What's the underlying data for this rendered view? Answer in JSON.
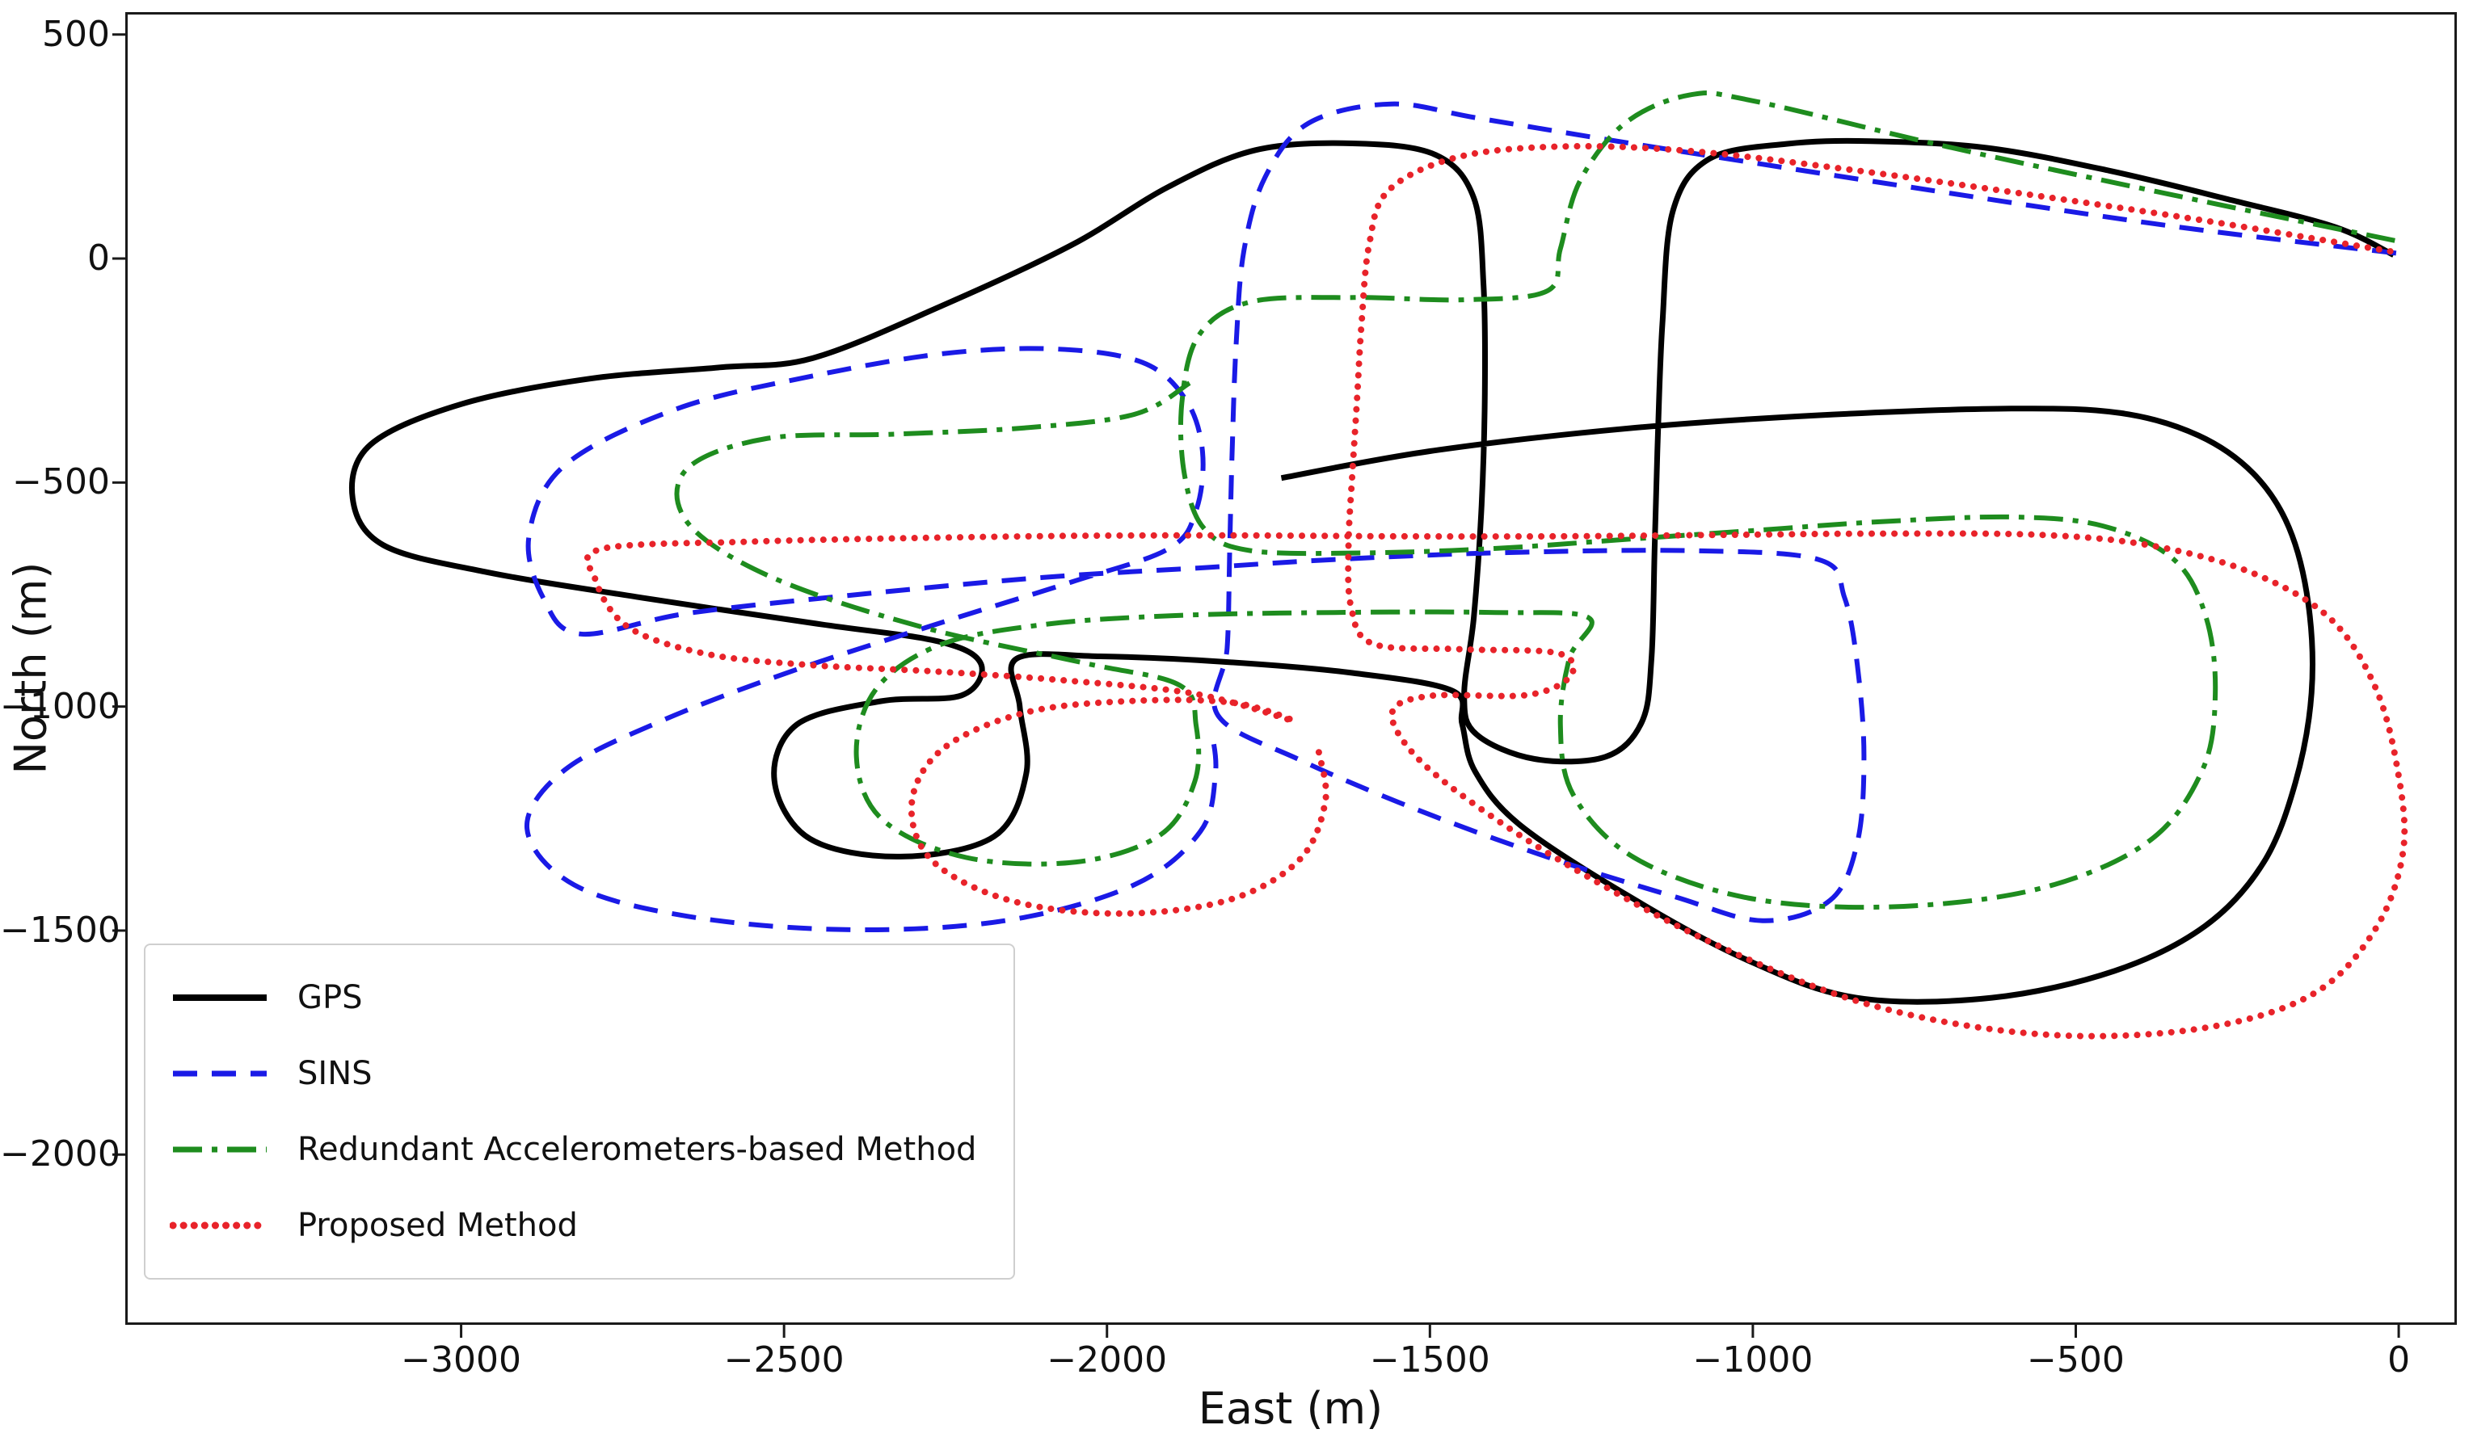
{
  "figure": {
    "background": "#ffffff",
    "frame_color": "#1a1a1a"
  },
  "chart_data": {
    "type": "line",
    "title": "",
    "xlabel": "East (m)",
    "ylabel": "North (m)",
    "xlim": [
      -3520,
      90
    ],
    "ylim": [
      -2380,
      550
    ],
    "x_ticks": [
      -3000,
      -2500,
      -2000,
      -1500,
      -1000,
      -500,
      0
    ],
    "y_ticks": [
      500,
      0,
      -500,
      -1000,
      -1500,
      -2000
    ],
    "grid": false,
    "legend": {
      "position": "lower-left",
      "entries": [
        "GPS",
        "SINS",
        "Redundant Accelerometers-based Method",
        "Proposed Method"
      ]
    },
    "series": [
      {
        "name": "GPS",
        "color": "#000000",
        "line_style": "solid",
        "line_width": 7,
        "points": [
          [
            -1730,
            -490
          ],
          [
            -1500,
            -430
          ],
          [
            -1200,
            -380
          ],
          [
            -900,
            -350
          ],
          [
            -600,
            -335
          ],
          [
            -430,
            -345
          ],
          [
            -310,
            -395
          ],
          [
            -225,
            -480
          ],
          [
            -170,
            -600
          ],
          [
            -140,
            -770
          ],
          [
            -135,
            -970
          ],
          [
            -160,
            -1170
          ],
          [
            -210,
            -1350
          ],
          [
            -300,
            -1490
          ],
          [
            -440,
            -1590
          ],
          [
            -630,
            -1650
          ],
          [
            -840,
            -1650
          ],
          [
            -1010,
            -1565
          ],
          [
            -1190,
            -1425
          ],
          [
            -1360,
            -1265
          ],
          [
            -1430,
            -1145
          ],
          [
            -1450,
            -1040
          ],
          [
            -1465,
            -965
          ],
          [
            -1620,
            -925
          ],
          [
            -1820,
            -900
          ],
          [
            -2010,
            -888
          ],
          [
            -2140,
            -893
          ],
          [
            -2135,
            -1000
          ],
          [
            -2125,
            -1150
          ],
          [
            -2175,
            -1290
          ],
          [
            -2320,
            -1335
          ],
          [
            -2460,
            -1295
          ],
          [
            -2515,
            -1165
          ],
          [
            -2480,
            -1040
          ],
          [
            -2350,
            -988
          ],
          [
            -2225,
            -975
          ],
          [
            -2195,
            -905
          ],
          [
            -2260,
            -855
          ],
          [
            -2450,
            -815
          ],
          [
            -2720,
            -757
          ],
          [
            -2960,
            -700
          ],
          [
            -3120,
            -640
          ],
          [
            -3168,
            -535
          ],
          [
            -3140,
            -415
          ],
          [
            -3000,
            -325
          ],
          [
            -2800,
            -268
          ],
          [
            -2600,
            -243
          ],
          [
            -2455,
            -222
          ],
          [
            -2255,
            -105
          ],
          [
            -2055,
            30
          ],
          [
            -1905,
            160
          ],
          [
            -1770,
            242
          ],
          [
            -1620,
            257
          ],
          [
            -1492,
            232
          ],
          [
            -1432,
            135
          ],
          [
            -1417,
            -60
          ],
          [
            -1415,
            -300
          ],
          [
            -1420,
            -550
          ],
          [
            -1432,
            -800
          ],
          [
            -1447,
            -978
          ],
          [
            -1428,
            -1062
          ],
          [
            -1338,
            -1117
          ],
          [
            -1228,
            -1112
          ],
          [
            -1172,
            -1035
          ],
          [
            -1157,
            -895
          ],
          [
            -1152,
            -645
          ],
          [
            -1147,
            -395
          ],
          [
            -1140,
            -145
          ],
          [
            -1124,
            105
          ],
          [
            -1068,
            222
          ],
          [
            -948,
            256
          ],
          [
            -818,
            262
          ],
          [
            -638,
            247
          ],
          [
            -448,
            196
          ],
          [
            -258,
            130
          ],
          [
            -98,
            70
          ],
          [
            -8,
            8
          ]
        ]
      },
      {
        "name": "SINS",
        "color": "#1a1ae6",
        "line_style": "dashed",
        "line_width": 6,
        "points": [
          [
            -4,
            12
          ],
          [
            -350,
            72
          ],
          [
            -750,
            158
          ],
          [
            -1150,
            248
          ],
          [
            -1420,
            312
          ],
          [
            -1560,
            345
          ],
          [
            -1688,
            302
          ],
          [
            -1755,
            182
          ],
          [
            -1788,
            18
          ],
          [
            -1800,
            -190
          ],
          [
            -1806,
            -420
          ],
          [
            -1810,
            -650
          ],
          [
            -1814,
            -870
          ],
          [
            -1828,
            -1020
          ],
          [
            -1700,
            -1120
          ],
          [
            -1520,
            -1230
          ],
          [
            -1320,
            -1335
          ],
          [
            -1120,
            -1425
          ],
          [
            -985,
            -1478
          ],
          [
            -880,
            -1432
          ],
          [
            -838,
            -1302
          ],
          [
            -828,
            -1110
          ],
          [
            -838,
            -910
          ],
          [
            -858,
            -757
          ],
          [
            -898,
            -672
          ],
          [
            -1100,
            -652
          ],
          [
            -1400,
            -657
          ],
          [
            -1650,
            -672
          ],
          [
            -1850,
            -690
          ],
          [
            -2100,
            -712
          ],
          [
            -2400,
            -752
          ],
          [
            -2650,
            -792
          ],
          [
            -2815,
            -838
          ],
          [
            -2872,
            -760
          ],
          [
            -2895,
            -620
          ],
          [
            -2840,
            -462
          ],
          [
            -2665,
            -335
          ],
          [
            -2455,
            -262
          ],
          [
            -2252,
            -212
          ],
          [
            -2078,
            -202
          ],
          [
            -1945,
            -232
          ],
          [
            -1878,
            -315
          ],
          [
            -1852,
            -432
          ],
          [
            -1862,
            -562
          ],
          [
            -1905,
            -648
          ],
          [
            -2055,
            -722
          ],
          [
            -2255,
            -812
          ],
          [
            -2490,
            -922
          ],
          [
            -2690,
            -1032
          ],
          [
            -2840,
            -1142
          ],
          [
            -2898,
            -1272
          ],
          [
            -2825,
            -1398
          ],
          [
            -2650,
            -1468
          ],
          [
            -2405,
            -1498
          ],
          [
            -2158,
            -1478
          ],
          [
            -1958,
            -1398
          ],
          [
            -1855,
            -1278
          ],
          [
            -1832,
            -1148
          ],
          [
            -1838,
            -1055
          ]
        ]
      },
      {
        "name": "Redundant Accelerometers-based Method",
        "color": "#1e8c1e",
        "line_style": "dashdot",
        "line_width": 6,
        "points": [
          [
            -6,
            40
          ],
          [
            -350,
            142
          ],
          [
            -700,
            250
          ],
          [
            -1000,
            352
          ],
          [
            -1098,
            365
          ],
          [
            -1198,
            302
          ],
          [
            -1268,
            172
          ],
          [
            -1298,
            22
          ],
          [
            -1318,
            -72
          ],
          [
            -1448,
            -92
          ],
          [
            -1618,
            -87
          ],
          [
            -1778,
            -97
          ],
          [
            -1858,
            -172
          ],
          [
            -1884,
            -322
          ],
          [
            -1880,
            -482
          ],
          [
            -1850,
            -602
          ],
          [
            -1778,
            -652
          ],
          [
            -1598,
            -657
          ],
          [
            -1398,
            -647
          ],
          [
            -1198,
            -627
          ],
          [
            -998,
            -607
          ],
          [
            -798,
            -587
          ],
          [
            -598,
            -577
          ],
          [
            -458,
            -597
          ],
          [
            -348,
            -672
          ],
          [
            -298,
            -802
          ],
          [
            -284,
            -972
          ],
          [
            -304,
            -1142
          ],
          [
            -388,
            -1302
          ],
          [
            -558,
            -1407
          ],
          [
            -788,
            -1447
          ],
          [
            -1008,
            -1427
          ],
          [
            -1184,
            -1337
          ],
          [
            -1278,
            -1197
          ],
          [
            -1298,
            -1042
          ],
          [
            -1284,
            -892
          ],
          [
            -1254,
            -802
          ],
          [
            -1398,
            -790
          ],
          [
            -1648,
            -790
          ],
          [
            -1898,
            -797
          ],
          [
            -2098,
            -817
          ],
          [
            -2258,
            -862
          ],
          [
            -2358,
            -962
          ],
          [
            -2388,
            -1112
          ],
          [
            -2348,
            -1252
          ],
          [
            -2218,
            -1337
          ],
          [
            -2048,
            -1347
          ],
          [
            -1918,
            -1287
          ],
          [
            -1864,
            -1167
          ],
          [
            -1862,
            -1042
          ],
          [
            -1888,
            -952
          ],
          [
            -2038,
            -902
          ],
          [
            -2288,
            -822
          ],
          [
            -2518,
            -712
          ],
          [
            -2648,
            -592
          ],
          [
            -2652,
            -472
          ],
          [
            -2528,
            -402
          ],
          [
            -2328,
            -392
          ],
          [
            -2128,
            -378
          ],
          [
            -1958,
            -348
          ],
          [
            -1872,
            -278
          ]
        ]
      },
      {
        "name": "Proposed Method",
        "color": "#e8232a",
        "line_style": "dotted",
        "line_width": 8,
        "points": [
          [
            -1672,
            -1102
          ],
          [
            -1662,
            -1212
          ],
          [
            -1702,
            -1342
          ],
          [
            -1812,
            -1432
          ],
          [
            -1982,
            -1462
          ],
          [
            -2152,
            -1432
          ],
          [
            -2272,
            -1342
          ],
          [
            -2302,
            -1212
          ],
          [
            -2252,
            -1092
          ],
          [
            -2122,
            -1012
          ],
          [
            -1952,
            -987
          ],
          [
            -1802,
            -992
          ],
          [
            -1712,
            -1032
          ],
          [
            -1862,
            -972
          ],
          [
            -2062,
            -942
          ],
          [
            -2262,
            -922
          ],
          [
            -2462,
            -907
          ],
          [
            -2622,
            -882
          ],
          [
            -2742,
            -822
          ],
          [
            -2792,
            -717
          ],
          [
            -2782,
            -648
          ],
          [
            -2552,
            -632
          ],
          [
            -2302,
            -624
          ],
          [
            -2052,
            -619
          ],
          [
            -1802,
            -618
          ],
          [
            -1552,
            -620
          ],
          [
            -1302,
            -620
          ],
          [
            -1052,
            -617
          ],
          [
            -802,
            -614
          ],
          [
            -552,
            -617
          ],
          [
            -382,
            -641
          ],
          [
            -228,
            -701
          ],
          [
            -108,
            -801
          ],
          [
            -38,
            -951
          ],
          [
            -3,
            -1131
          ],
          [
            7,
            -1321
          ],
          [
            -38,
            -1501
          ],
          [
            -138,
            -1646
          ],
          [
            -318,
            -1721
          ],
          [
            -558,
            -1731
          ],
          [
            -818,
            -1666
          ],
          [
            -1058,
            -1531
          ],
          [
            -1278,
            -1361
          ],
          [
            -1438,
            -1211
          ],
          [
            -1528,
            -1101
          ],
          [
            -1558,
            -1011
          ],
          [
            -1498,
            -976
          ],
          [
            -1348,
            -974
          ],
          [
            -1282,
            -931
          ],
          [
            -1302,
            -881
          ],
          [
            -1452,
            -872
          ],
          [
            -1588,
            -860
          ],
          [
            -1622,
            -778
          ],
          [
            -1626,
            -638
          ],
          [
            -1620,
            -478
          ],
          [
            -1613,
            -318
          ],
          [
            -1606,
            -148
          ],
          [
            -1594,
            32
          ],
          [
            -1564,
            152
          ],
          [
            -1458,
            226
          ],
          [
            -1298,
            250
          ],
          [
            -1098,
            240
          ],
          [
            -848,
            198
          ],
          [
            -578,
            144
          ],
          [
            -298,
            84
          ],
          [
            -4,
            14
          ]
        ]
      }
    ]
  }
}
